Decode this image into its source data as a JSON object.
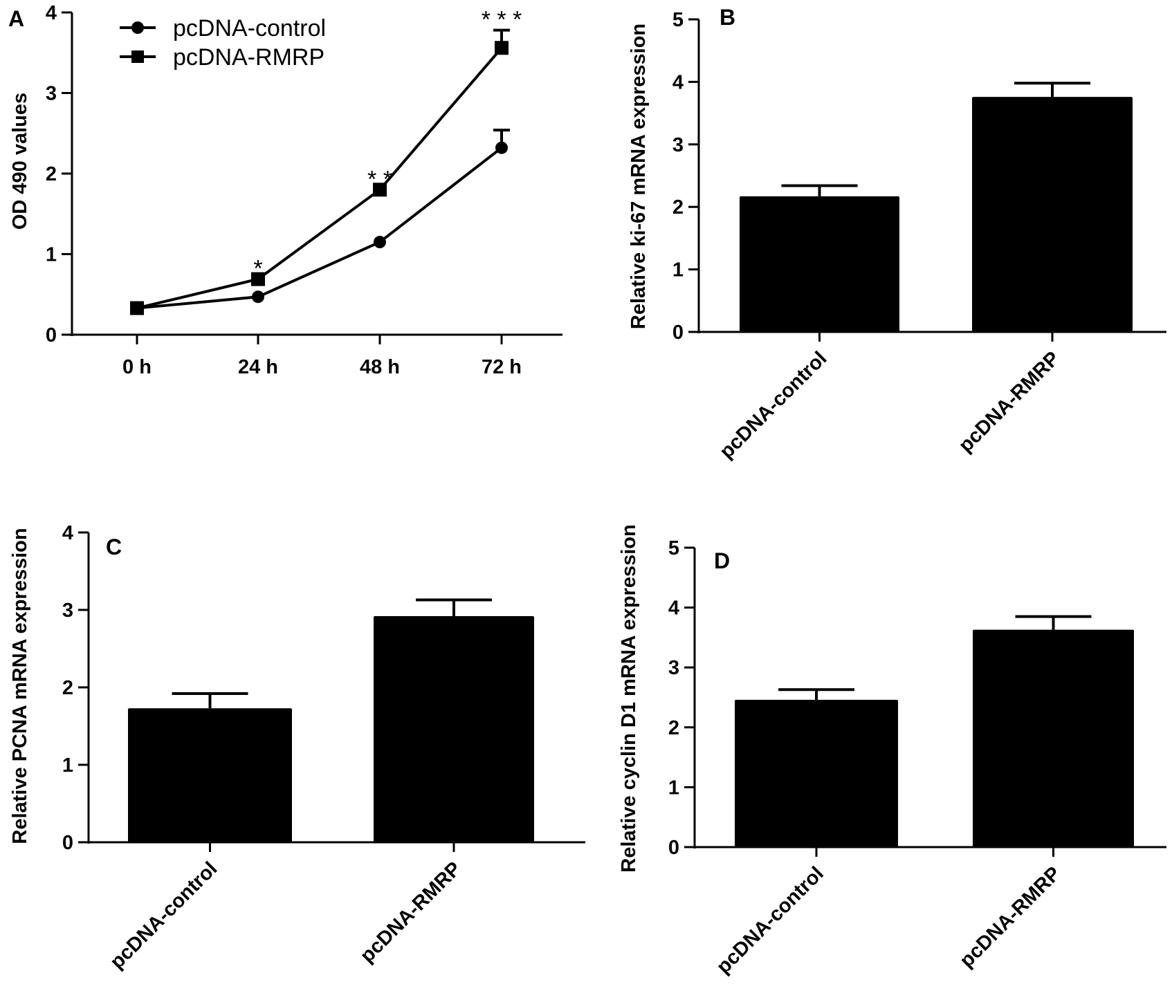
{
  "colors": {
    "ink": "#000000",
    "background": "#ffffff"
  },
  "chart_data": [
    {
      "panel": "A",
      "type": "line",
      "categories": [
        "0 h",
        "24 h",
        "48 h",
        "72 h"
      ],
      "ylabel": "OD 490 values",
      "ylim": [
        0,
        4
      ],
      "yticks": [
        "0",
        "1",
        "2",
        "3",
        "4"
      ],
      "legend_position": "top-left",
      "series": [
        {
          "name": "pcDNA-control",
          "marker": "circle",
          "values": [
            0.33,
            0.47,
            1.15,
            2.32
          ],
          "error": [
            0,
            0,
            0,
            0.22
          ]
        },
        {
          "name": "pcDNA-RMRP",
          "marker": "square",
          "values": [
            0.33,
            0.69,
            1.8,
            3.56
          ],
          "error": [
            0,
            0,
            0,
            0.22
          ]
        }
      ],
      "annotations": [
        "",
        "*",
        "* *",
        "* * *"
      ]
    },
    {
      "panel": "B",
      "type": "bar",
      "categories": [
        "pcDNA-control",
        "pcDNA-RMRP"
      ],
      "values": [
        2.17,
        3.76
      ],
      "error": [
        0.17,
        0.22
      ],
      "ylabel": "Relative  ki-67 mRNA expression",
      "ylim": [
        0,
        5
      ],
      "yticks": [
        "0",
        "1",
        "2",
        "3",
        "4",
        "5"
      ]
    },
    {
      "panel": "C",
      "type": "bar",
      "categories": [
        "pcDNA-control",
        "pcDNA-RMRP"
      ],
      "values": [
        1.73,
        2.92
      ],
      "error": [
        0.19,
        0.21
      ],
      "ylabel": "Relative  PCNA mRNA expression",
      "ylim": [
        0,
        4
      ],
      "yticks": [
        "0",
        "1",
        "2",
        "3",
        "4"
      ]
    },
    {
      "panel": "D",
      "type": "bar",
      "categories": [
        "pcDNA-control",
        "pcDNA-RMRP"
      ],
      "values": [
        2.46,
        3.63
      ],
      "error": [
        0.17,
        0.22
      ],
      "ylabel": "Relative  cyclin D1 mRNA expression",
      "ylim": [
        0,
        5
      ],
      "yticks": [
        "0",
        "1",
        "2",
        "3",
        "4",
        "5"
      ]
    }
  ]
}
